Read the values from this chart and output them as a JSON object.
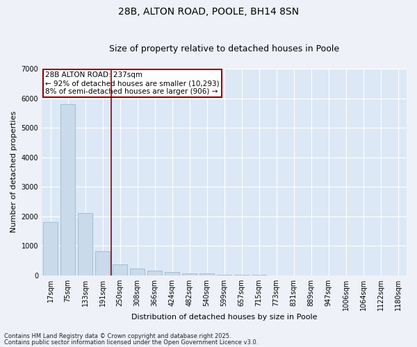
{
  "title": "28B, ALTON ROAD, POOLE, BH14 8SN",
  "subtitle": "Size of property relative to detached houses in Poole",
  "xlabel": "Distribution of detached houses by size in Poole",
  "ylabel": "Number of detached properties",
  "categories": [
    "17sqm",
    "75sqm",
    "133sqm",
    "191sqm",
    "250sqm",
    "308sqm",
    "366sqm",
    "424sqm",
    "482sqm",
    "540sqm",
    "599sqm",
    "657sqm",
    "715sqm",
    "773sqm",
    "831sqm",
    "889sqm",
    "947sqm",
    "1006sqm",
    "1064sqm",
    "1122sqm",
    "1180sqm"
  ],
  "values": [
    1800,
    5800,
    2100,
    820,
    360,
    230,
    160,
    100,
    70,
    50,
    5,
    3,
    2,
    1,
    1,
    0,
    0,
    0,
    0,
    0,
    0
  ],
  "bar_color": "#c9daea",
  "bar_edge_color": "#9ab8d0",
  "vline_position": 3.5,
  "vline_color": "#990000",
  "annotation_text": "28B ALTON ROAD: 237sqm\n← 92% of detached houses are smaller (10,293)\n8% of semi-detached houses are larger (906) →",
  "annotation_box_edgecolor": "#990000",
  "annotation_facecolor": "#ffffff",
  "footer1": "Contains HM Land Registry data © Crown copyright and database right 2025.",
  "footer2": "Contains public sector information licensed under the Open Government Licence v3.0.",
  "ylim": [
    0,
    7000
  ],
  "yticks": [
    0,
    1000,
    2000,
    3000,
    4000,
    5000,
    6000,
    7000
  ],
  "fig_bg_color": "#eef2f8",
  "plot_bg_color": "#dce8f5",
  "grid_color": "#ffffff",
  "title_fontsize": 10,
  "subtitle_fontsize": 9,
  "tick_fontsize": 7,
  "ylabel_fontsize": 8,
  "xlabel_fontsize": 8,
  "annotation_fontsize": 7.5,
  "footer_fontsize": 6
}
